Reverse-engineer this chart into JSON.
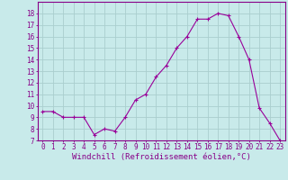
{
  "x": [
    0,
    1,
    2,
    3,
    4,
    5,
    6,
    7,
    8,
    9,
    10,
    11,
    12,
    13,
    14,
    15,
    16,
    17,
    18,
    19,
    20,
    21,
    22,
    23
  ],
  "y": [
    9.5,
    9.5,
    9.0,
    9.0,
    9.0,
    7.5,
    8.0,
    7.8,
    9.0,
    10.5,
    11.0,
    12.5,
    13.5,
    15.0,
    16.0,
    17.5,
    17.5,
    18.0,
    17.8,
    16.0,
    14.0,
    9.8,
    8.5,
    7.0
  ],
  "line_color": "#990099",
  "marker": "+",
  "marker_size": 3,
  "bg_color": "#c8eaea",
  "grid_color": "#aacece",
  "xlabel": "Windchill (Refroidissement éolien,°C)",
  "ylim": [
    7,
    19
  ],
  "xlim_min": -0.5,
  "xlim_max": 23.5,
  "yticks": [
    7,
    8,
    9,
    10,
    11,
    12,
    13,
    14,
    15,
    16,
    17,
    18
  ],
  "xticks": [
    0,
    1,
    2,
    3,
    4,
    5,
    6,
    7,
    8,
    9,
    10,
    11,
    12,
    13,
    14,
    15,
    16,
    17,
    18,
    19,
    20,
    21,
    22,
    23
  ],
  "tick_fontsize": 5.5,
  "xlabel_fontsize": 6.5,
  "line_color_hex": "#880088",
  "spine_color": "#880088"
}
